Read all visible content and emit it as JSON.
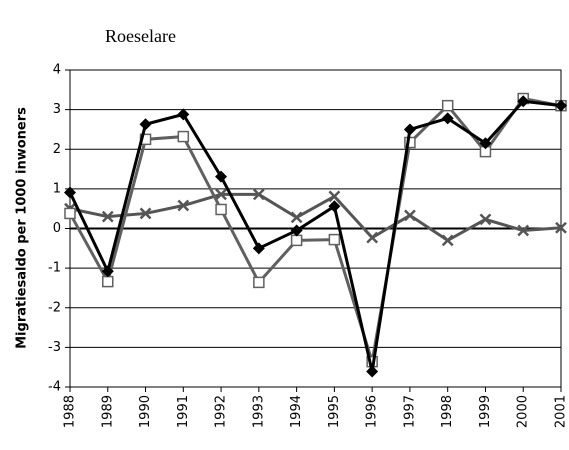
{
  "chart_data": {
    "type": "line",
    "title": "Roeselare",
    "y_label": "Migratiesaldo per 1000 inwoners",
    "x": [
      1988,
      1989,
      1990,
      1991,
      1992,
      1993,
      1994,
      1995,
      1996,
      1997,
      1998,
      1999,
      2000,
      2001
    ],
    "xlim": [
      1988,
      2001
    ],
    "xticks": [
      1988,
      1989,
      1990,
      1991,
      1992,
      1993,
      1994,
      1995,
      1996,
      1997,
      1998,
      1999,
      2000,
      2001
    ],
    "ylim": [
      -4,
      4
    ],
    "yticks": [
      -4,
      -3,
      -2,
      -1,
      0,
      1,
      2,
      3,
      4
    ],
    "grid": true,
    "series": [
      {
        "color": "#000000",
        "marker": "diamond",
        "values": [
          0.91,
          -1.08,
          2.63,
          2.88,
          1.31,
          -0.5,
          -0.05,
          0.56,
          -3.61,
          2.5,
          2.78,
          2.15,
          3.21,
          3.1
        ]
      },
      {
        "color": "#606060",
        "marker": "square",
        "values": [
          0.38,
          -1.34,
          2.25,
          2.32,
          0.48,
          -1.36,
          -0.3,
          -0.28,
          -3.36,
          2.17,
          3.1,
          1.94,
          3.28,
          3.1
        ]
      },
      {
        "color": "#555555",
        "marker": "x",
        "values": [
          0.5,
          0.3,
          0.38,
          0.58,
          0.86,
          0.86,
          0.28,
          0.81,
          -0.23,
          0.33,
          -0.3,
          0.23,
          -0.05,
          0.02
        ]
      }
    ]
  }
}
